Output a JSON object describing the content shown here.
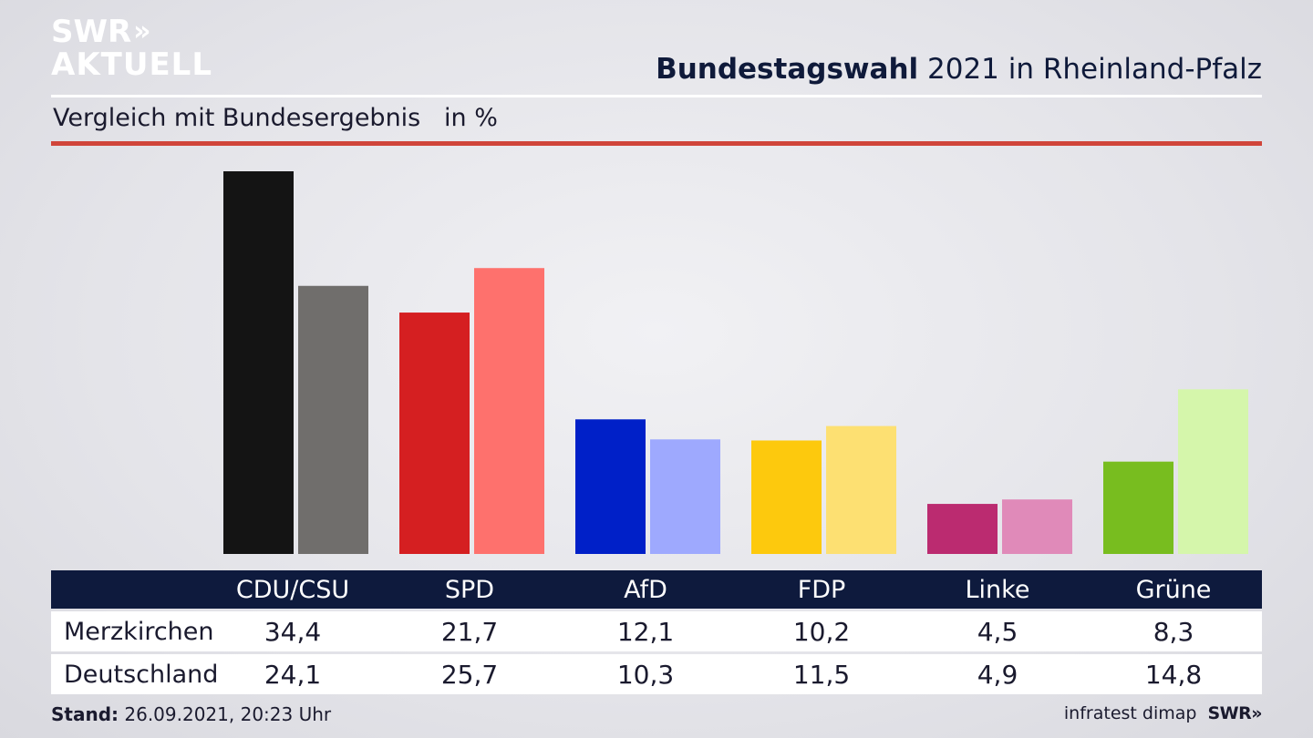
{
  "logo": {
    "line1": "SWR",
    "arrows": "»",
    "line2": "AKTUELL"
  },
  "header": {
    "title_bold": "Bundestagswahl",
    "title_rest": " 2021 in Rheinland-Pfalz"
  },
  "subtitle": "Vergleich mit Bundesergebnis   in %",
  "colors": {
    "red_rule": "#d0453a",
    "table_header": "#0e1a3d"
  },
  "chart_data": {
    "type": "bar",
    "categories": [
      "CDU/CSU",
      "SPD",
      "AfD",
      "FDP",
      "Linke",
      "Grüne"
    ],
    "series": [
      {
        "name": "Merzkirchen",
        "values": [
          34.4,
          21.7,
          12.1,
          10.2,
          4.5,
          8.3
        ],
        "colors": [
          "#141414",
          "#d51f21",
          "#0020c8",
          "#fdc90d",
          "#bb2b70",
          "#78bd1f"
        ]
      },
      {
        "name": "Deutschland",
        "values": [
          24.1,
          25.7,
          10.3,
          11.5,
          4.9,
          14.8
        ],
        "colors": [
          "#706e6c",
          "#fe716d",
          "#9ea9fe",
          "#fde072",
          "#e08ab9",
          "#d5f6ab"
        ]
      }
    ],
    "ylim": [
      0,
      34.4
    ],
    "xlabel": "",
    "ylabel": ""
  },
  "table": {
    "headers": [
      "CDU/CSU",
      "SPD",
      "AfD",
      "FDP",
      "Linke",
      "Grüne"
    ],
    "rows": [
      {
        "label": "Merzkirchen",
        "values": [
          "34,4",
          "21,7",
          "12,1",
          "10,2",
          "4,5",
          "8,3"
        ]
      },
      {
        "label": "Deutschland",
        "values": [
          "24,1",
          "25,7",
          "10,3",
          "11,5",
          "4,9",
          "14,8"
        ]
      }
    ]
  },
  "footer": {
    "stand_label": "Stand:",
    "stand_value": " 26.09.2021, 20:23 Uhr",
    "source": "infratest dimap",
    "brand": "SWR»"
  }
}
